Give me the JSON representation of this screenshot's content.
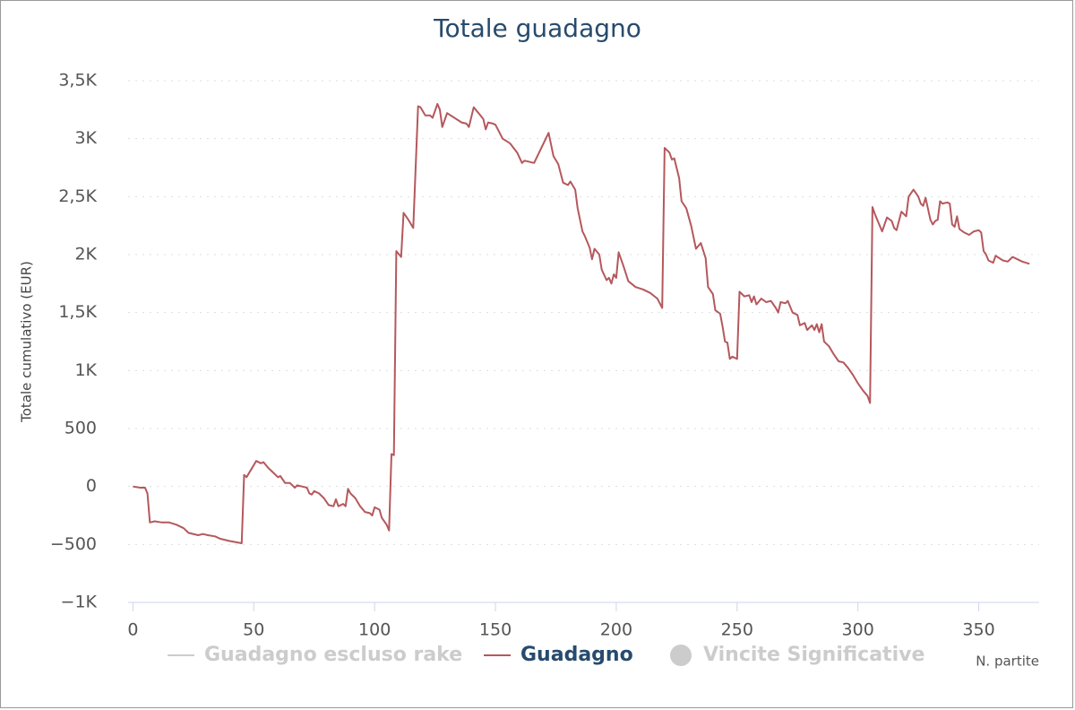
{
  "chart_data": {
    "type": "line",
    "title": "Totale guadagno",
    "y_label": "Totale cumulativo (EUR)",
    "x_label": "N. partite",
    "xlim": [
      -2,
      375
    ],
    "xticks": [
      0,
      50,
      100,
      150,
      200,
      250,
      300,
      350
    ],
    "ylim": [
      -1000,
      3500
    ],
    "yticks": [
      {
        "value": -1000,
        "label": "−1K"
      },
      {
        "value": -500,
        "label": "−500"
      },
      0,
      500,
      {
        "value": 1000,
        "label": "1K"
      },
      {
        "value": 1500,
        "label": "1,5K"
      },
      {
        "value": 2000,
        "label": "2K"
      },
      {
        "value": 2500,
        "label": "2,5K"
      },
      {
        "value": 3000,
        "label": "3K"
      },
      {
        "value": 3500,
        "label": "3,5K"
      }
    ],
    "grid": true,
    "x": [
      0,
      3,
      5,
      6,
      7,
      9,
      12,
      15,
      18,
      21,
      23,
      27,
      29,
      31,
      34,
      36,
      40,
      45,
      46,
      47,
      49,
      51,
      53,
      54,
      56,
      58,
      60,
      61,
      63,
      65,
      67,
      68,
      70,
      72,
      73,
      74,
      75,
      77,
      79,
      81,
      83,
      84,
      85,
      87,
      88,
      89,
      90,
      92,
      94,
      96,
      98,
      99,
      100,
      102,
      103,
      105,
      106,
      107,
      108,
      109,
      111,
      112,
      114,
      116,
      118,
      119,
      121,
      123,
      124,
      126,
      127,
      128,
      130,
      133,
      136,
      138,
      139,
      141,
      143,
      145,
      146,
      147,
      149,
      150,
      153,
      156,
      159,
      161,
      162,
      166,
      172,
      174,
      176,
      178,
      180,
      181,
      183,
      184,
      186,
      187,
      189,
      190,
      191,
      193,
      194,
      196,
      197,
      198,
      199,
      200,
      201,
      203,
      205,
      208,
      211,
      214,
      217,
      219,
      220,
      222,
      223,
      224,
      226,
      227,
      229,
      231,
      233,
      235,
      237,
      238,
      240,
      241,
      243,
      244,
      245,
      246,
      247,
      248,
      250,
      251,
      253,
      255,
      256,
      257,
      258,
      260,
      262,
      264,
      266,
      267,
      268,
      270,
      271,
      273,
      275,
      276,
      278,
      279,
      281,
      282,
      283,
      284,
      285,
      286,
      288,
      290,
      292,
      294,
      296,
      298,
      300,
      302,
      304,
      305,
      306,
      307,
      309,
      310,
      312,
      314,
      315,
      316,
      318,
      320,
      321,
      323,
      325,
      326,
      327,
      328,
      330,
      331,
      332,
      333,
      334,
      335,
      337,
      338,
      339,
      340,
      341,
      342,
      344,
      346,
      348,
      350,
      351,
      352,
      353,
      354,
      356,
      357,
      360,
      362,
      364,
      366,
      368,
      371
    ],
    "series": [
      {
        "name": "Guadagno escluso rake",
        "color": "#cccccc",
        "visible": false
      },
      {
        "name": "Guadagno",
        "color": "#b5585c",
        "visible": true,
        "values": [
          0,
          -10,
          -10,
          -60,
          -310,
          -300,
          -310,
          -310,
          -330,
          -360,
          -400,
          -420,
          -410,
          -420,
          -430,
          -450,
          -470,
          -490,
          100,
          80,
          150,
          220,
          200,
          210,
          160,
          120,
          80,
          90,
          30,
          30,
          -10,
          10,
          0,
          -10,
          -60,
          -70,
          -40,
          -60,
          -100,
          -160,
          -170,
          -110,
          -170,
          -150,
          -170,
          -20,
          -60,
          -100,
          -170,
          -220,
          -230,
          -250,
          -180,
          -200,
          -270,
          -330,
          -380,
          280,
          270,
          2030,
          1980,
          2360,
          2300,
          2230,
          3280,
          3270,
          3200,
          3200,
          3180,
          3300,
          3250,
          3100,
          3220,
          3180,
          3140,
          3130,
          3100,
          3270,
          3220,
          3170,
          3080,
          3140,
          3130,
          3120,
          3000,
          2960,
          2880,
          2790,
          2810,
          2790,
          3050,
          2850,
          2780,
          2620,
          2600,
          2630,
          2560,
          2400,
          2200,
          2160,
          2060,
          1960,
          2050,
          2000,
          1870,
          1780,
          1800,
          1750,
          1830,
          1800,
          2020,
          1900,
          1770,
          1720,
          1700,
          1670,
          1620,
          1540,
          2920,
          2880,
          2820,
          2830,
          2660,
          2460,
          2400,
          2250,
          2050,
          2100,
          1970,
          1720,
          1660,
          1520,
          1490,
          1380,
          1250,
          1240,
          1100,
          1120,
          1100,
          1680,
          1640,
          1650,
          1590,
          1640,
          1570,
          1620,
          1590,
          1600,
          1540,
          1500,
          1590,
          1580,
          1600,
          1500,
          1480,
          1390,
          1410,
          1350,
          1390,
          1350,
          1400,
          1330,
          1400,
          1250,
          1210,
          1140,
          1080,
          1070,
          1020,
          960,
          890,
          830,
          780,
          720,
          2410,
          2350,
          2250,
          2200,
          2320,
          2290,
          2230,
          2210,
          2370,
          2330,
          2500,
          2560,
          2500,
          2440,
          2420,
          2490,
          2300,
          2260,
          2290,
          2300,
          2460,
          2440,
          2450,
          2440,
          2260,
          2240,
          2330,
          2220,
          2190,
          2170,
          2200,
          2210,
          2190,
          2030,
          2000,
          1950,
          1930,
          1990,
          1950,
          1940,
          1980,
          1960,
          1940,
          1920
        ]
      },
      {
        "name": "Vincite Significative",
        "color": "#cccccc",
        "visible": false,
        "marker": "circle"
      }
    ]
  }
}
